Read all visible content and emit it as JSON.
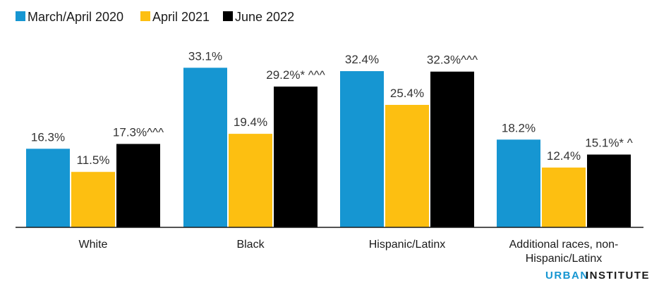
{
  "chart_data": {
    "type": "bar",
    "categories": [
      "White",
      "Black",
      "Hispanic/Latinx",
      "Additional races, non-Hispanic/Latinx"
    ],
    "category_lines": [
      [
        "White"
      ],
      [
        "Black"
      ],
      [
        "Hispanic/Latinx"
      ],
      [
        "Additional races, non-",
        "Hispanic/Latinx"
      ]
    ],
    "series": [
      {
        "name": "March/April 2020",
        "color": "#1696d2",
        "values": [
          16.3,
          33.1,
          32.4,
          18.2
        ],
        "labels": [
          "16.3%",
          "33.1%",
          "32.4%",
          "18.2%"
        ]
      },
      {
        "name": "April 2021",
        "color": "#fdbf11",
        "values": [
          11.5,
          19.4,
          25.4,
          12.4
        ],
        "labels": [
          "11.5%",
          "19.4%",
          "25.4%",
          "12.4%"
        ]
      },
      {
        "name": "June 2022",
        "color": "#000000",
        "values": [
          17.3,
          29.2,
          32.3,
          15.1
        ],
        "labels": [
          "17.3%^^^",
          "29.2%* ^^^",
          "32.3%^^^",
          "15.1%* ^"
        ]
      }
    ],
    "ylim": [
      0,
      35
    ],
    "grid": false,
    "legend": "top-left"
  },
  "branding": {
    "urban": "URBAN",
    "institute": "INSTITUTE"
  }
}
